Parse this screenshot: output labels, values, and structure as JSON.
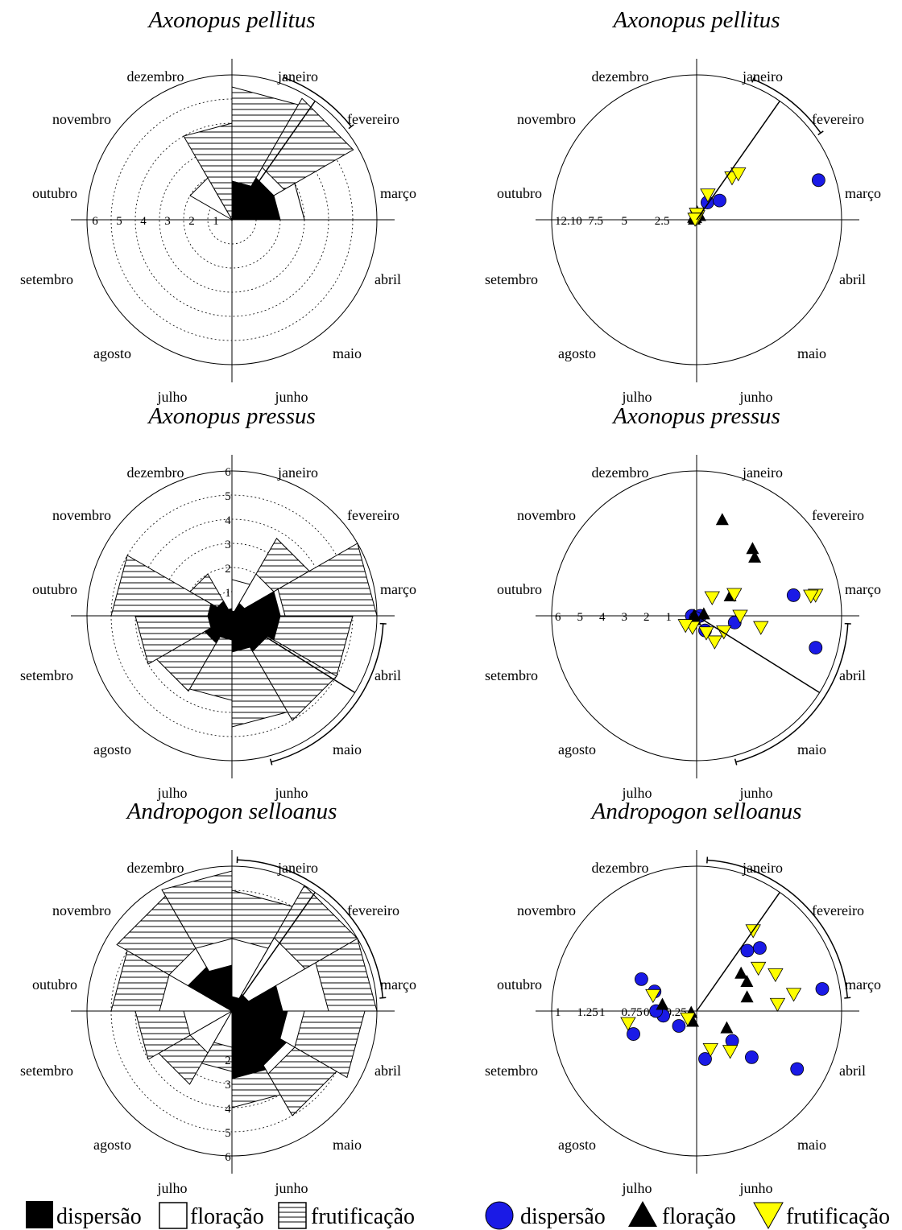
{
  "months": [
    "janeiro",
    "fevereiro",
    "março",
    "abril",
    "maio",
    "junho",
    "julho",
    "agosto",
    "setembro",
    "outubro",
    "novembro",
    "dezembro"
  ],
  "colors": {
    "dispersao_rose": "#000000",
    "dispersao_point": "#1a1ae6",
    "floracao_point": "#000000",
    "frutificacao_point": "#ffff00"
  },
  "legend_left": {
    "dispersao": "dispersão",
    "floracao": "floração",
    "frutificacao": "frutificação"
  },
  "legend_right": {
    "dispersao": "dispersão",
    "floracao": "floração",
    "frutificacao": "frutificação"
  },
  "chart_data": [
    {
      "type": "rose",
      "title": "Axonopus pellitus",
      "radial_ticks": [
        "6",
        "5",
        "4",
        "3",
        "2",
        "1"
      ],
      "rmax": 6,
      "series": [
        {
          "name": "dispersão",
          "values": [
            1.6,
            2.0,
            2.0,
            0,
            0,
            0,
            0,
            0,
            0,
            0,
            0,
            0
          ]
        },
        {
          "name": "floração",
          "values": [
            1.6,
            2.5,
            3.0,
            0,
            0,
            0,
            0,
            0,
            0,
            0,
            2.0,
            0
          ]
        },
        {
          "name": "frutificação",
          "values": [
            5.5,
            5.8,
            3.0,
            0,
            0,
            0,
            0,
            0,
            0,
            0,
            0,
            4.0
          ]
        }
      ],
      "mean_angle_deg": 35,
      "arc_deg": [
        20,
        52
      ]
    },
    {
      "type": "scatter-polar",
      "title": "Axonopus pellitus",
      "radial_ticks": [
        "12.10",
        "7.5",
        "5",
        "2.5"
      ],
      "rmax": 12.1,
      "series": [
        {
          "name": "dispersão",
          "points": [
            [
              72,
              10.7
            ],
            [
              32,
              1.7
            ],
            [
              50,
              2.5
            ]
          ]
        },
        {
          "name": "floração",
          "points": [
            [
              270,
              0.2
            ],
            [
              330,
              0.15
            ],
            [
              300,
              0.3
            ],
            [
              40,
              0.4
            ],
            [
              5,
              0.6
            ]
          ]
        },
        {
          "name": "frutificação",
          "points": [
            [
              24,
              2.3
            ],
            [
              40,
              4.6
            ],
            [
              15,
              0.3
            ],
            [
              0,
              0.5
            ],
            [
              42,
              5.2
            ],
            [
              350,
              0.1
            ],
            [
              300,
              0.15
            ]
          ]
        }
      ],
      "mean_angle_deg": 35,
      "arc_deg": [
        22,
        55
      ]
    },
    {
      "type": "rose",
      "title": "Axonopus pressus",
      "radial_ticks": [
        "6",
        "5",
        "4",
        "3",
        "2",
        "1"
      ],
      "rmax": 6,
      "series": [
        {
          "name": "dispersão",
          "values": [
            0.2,
            0.6,
            2.0,
            2.0,
            1.7,
            1.5,
            1.0,
            1.3,
            1.0,
            1.0,
            0.7,
            0.3
          ]
        },
        {
          "name": "floração",
          "values": [
            1.5,
            2.0,
            2.2,
            1.0,
            0,
            0,
            0,
            0,
            0,
            0,
            0,
            0
          ]
        },
        {
          "name": "frutificação",
          "values": [
            1.2,
            3.7,
            6.0,
            5.0,
            5.0,
            4.6,
            3.5,
            3.6,
            4.0,
            5.0,
            2.0,
            0
          ]
        }
      ],
      "mean_angle_deg": 122,
      "arc_deg": [
        93,
        165
      ]
    },
    {
      "type": "scatter-polar",
      "title": "Axonopus pressus",
      "radial_ticks": [
        "6",
        "5",
        "4",
        "3",
        "2",
        "1"
      ],
      "rmax": 6,
      "series": [
        {
          "name": "dispersão",
          "points": [
            [
              78,
              4.1
            ],
            [
              105,
              5.1
            ],
            [
              100,
              1.6
            ],
            [
              150,
              0.7
            ],
            [
              270,
              0.2
            ],
            [
              90,
              0.15
            ],
            [
              200,
              0.1
            ]
          ]
        },
        {
          "name": "floração",
          "points": [
            [
              15,
              4.1
            ],
            [
              40,
              3.6
            ],
            [
              45,
              3.4
            ],
            [
              60,
              1.6
            ],
            [
              80,
              0.3
            ],
            [
              200,
              0.2
            ],
            [
              270,
              0.1
            ]
          ]
        },
        {
          "name": "frutificação",
          "points": [
            [
              60,
              1.8
            ],
            [
              40,
              1.0
            ],
            [
              80,
              5.0
            ],
            [
              80,
              4.8
            ],
            [
              120,
              1.3
            ],
            [
              145,
              1.3
            ],
            [
              100,
              2.7
            ],
            [
              200,
              0.5
            ],
            [
              230,
              0.6
            ],
            [
              150,
              0.8
            ],
            [
              90,
              1.8
            ]
          ]
        }
      ],
      "mean_angle_deg": 122,
      "arc_deg": [
        93,
        165
      ]
    },
    {
      "type": "rose",
      "title": "Andropogon selloanus",
      "radial_ticks": [
        "2",
        "3",
        "4",
        "5",
        "6"
      ],
      "rmax": 6,
      "series": [
        {
          "name": "dispersão",
          "values": [
            0.6,
            0.8,
            2.1,
            2.3,
            2.6,
            2.8,
            0,
            0,
            0,
            0,
            2.1,
            1.9
          ]
        },
        {
          "name": "floração",
          "values": [
            3.0,
            3.5,
            4.0,
            3.0,
            3.0,
            2.0,
            1.5,
            2.0,
            2.0,
            3.0,
            3.0,
            3.0
          ]
        },
        {
          "name": "frutificação",
          "values": [
            5.0,
            6.0,
            6.0,
            5.5,
            5.0,
            4.0,
            2.5,
            3.5,
            4.0,
            5.0,
            5.5,
            5.8
          ]
        }
      ],
      "mean_angle_deg": 35,
      "arc_deg": [
        2,
        85
      ]
    },
    {
      "type": "scatter-polar",
      "title": "Andropogon selloanus",
      "radial_ticks": [
        "1",
        "1.25",
        "1",
        "0.75",
        "0.5",
        "0.25"
      ],
      "rmax": 1.25,
      "series": [
        {
          "name": "dispersão",
          "points": [
            [
              40,
              0.68
            ],
            [
              45,
              0.77
            ],
            [
              250,
              0.58
            ],
            [
              262,
              0.29
            ],
            [
              270,
              0.35
            ],
            [
              295,
              0.4
            ],
            [
              300,
              0.55
            ],
            [
              80,
              1.1
            ],
            [
              120,
              1.0
            ],
            [
              170,
              0.42
            ],
            [
              130,
              0.62
            ],
            [
              230,
              0.2
            ],
            [
              130,
              0.4
            ]
          ]
        },
        {
          "name": "floração",
          "points": [
            [
              280,
              0.3
            ],
            [
              50,
              0.5
            ],
            [
              60,
              0.5
            ],
            [
              75,
              0.45
            ],
            [
              120,
              0.3
            ],
            [
              200,
              0.1
            ],
            [
              250,
              0.05
            ]
          ]
        },
        {
          "name": "frutificação",
          "points": [
            [
              35,
              0.85
            ],
            [
              55,
              0.65
            ],
            [
              65,
              0.75
            ],
            [
              80,
              0.85
            ],
            [
              85,
              0.7
            ],
            [
              260,
              0.6
            ],
            [
              290,
              0.4
            ],
            [
              230,
              0.1
            ],
            [
              140,
              0.45
            ],
            [
              160,
              0.35
            ]
          ]
        }
      ],
      "mean_angle_deg": 35,
      "arc_deg": [
        4,
        85
      ]
    }
  ]
}
